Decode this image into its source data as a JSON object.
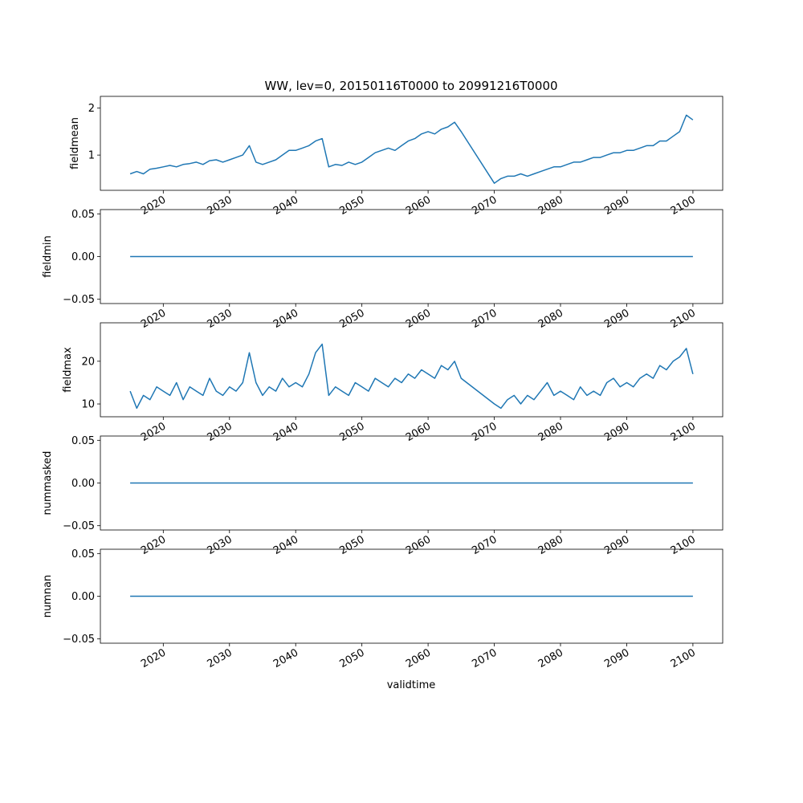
{
  "figure": {
    "title": "WW, lev=0, 20150116T0000 to 20991216T0000",
    "xlabel": "validtime"
  },
  "chart_data": [
    {
      "type": "line",
      "ylabel": "fieldmean",
      "title": "WW, lev=0, 20150116T0000 to 20991216T0000",
      "xlim": [
        2010.5,
        2104.5
      ],
      "ylim": [
        0.25,
        2.25
      ],
      "yticks": [
        1,
        2
      ],
      "ytick_labels": [
        "1",
        "2"
      ],
      "xticks": [
        2020,
        2030,
        2040,
        2050,
        2060,
        2070,
        2080,
        2090,
        2100
      ],
      "xtick_labels": [
        "2020",
        "2030",
        "2040",
        "2050",
        "2060",
        "2070",
        "2080",
        "2090",
        "2100"
      ],
      "series": [
        {
          "name": "fieldmean",
          "color": "#1f77b4",
          "x": [
            2015.0,
            2016.0,
            2017.0,
            2018.0,
            2019.0,
            2020.0,
            2021.0,
            2022.0,
            2023.0,
            2024.0,
            2025.0,
            2026.0,
            2027.0,
            2028.0,
            2029.0,
            2030.0,
            2031.0,
            2032.0,
            2033.0,
            2034.0,
            2035.0,
            2036.0,
            2037.0,
            2038.0,
            2039.0,
            2040.0,
            2041.0,
            2042.0,
            2043.0,
            2044.0,
            2045.0,
            2046.0,
            2047.0,
            2048.0,
            2049.0,
            2050.0,
            2051.0,
            2052.0,
            2053.0,
            2054.0,
            2055.0,
            2056.0,
            2057.0,
            2058.0,
            2059.0,
            2060.0,
            2061.0,
            2062.0,
            2063.0,
            2064.0,
            2065.0,
            2070.0,
            2071.0,
            2072.0,
            2073.0,
            2074.0,
            2075.0,
            2076.0,
            2077.0,
            2078.0,
            2079.0,
            2080.0,
            2081.0,
            2082.0,
            2083.0,
            2084.0,
            2085.0,
            2086.0,
            2087.0,
            2088.0,
            2089.0,
            2090.0,
            2091.0,
            2092.0,
            2093.0,
            2094.0,
            2095.0,
            2096.0,
            2097.0,
            2098.0,
            2099.0,
            2100.0
          ],
          "values": [
            0.6,
            0.65,
            0.6,
            0.7,
            0.72,
            0.75,
            0.78,
            0.75,
            0.8,
            0.82,
            0.85,
            0.8,
            0.88,
            0.9,
            0.85,
            0.9,
            0.95,
            1.0,
            1.2,
            0.85,
            0.8,
            0.85,
            0.9,
            1.0,
            1.1,
            1.1,
            1.15,
            1.2,
            1.3,
            1.35,
            0.75,
            0.8,
            0.78,
            0.85,
            0.8,
            0.85,
            0.95,
            1.05,
            1.1,
            1.15,
            1.1,
            1.2,
            1.3,
            1.35,
            1.45,
            1.5,
            1.45,
            1.55,
            1.6,
            1.7,
            1.5,
            0.4,
            0.5,
            0.55,
            0.55,
            0.6,
            0.55,
            0.6,
            0.65,
            0.7,
            0.75,
            0.75,
            0.8,
            0.85,
            0.85,
            0.9,
            0.95,
            0.95,
            1.0,
            1.05,
            1.05,
            1.1,
            1.1,
            1.15,
            1.2,
            1.2,
            1.3,
            1.3,
            1.4,
            1.5,
            1.85,
            1.75
          ]
        }
      ]
    },
    {
      "type": "line",
      "ylabel": "fieldmin",
      "xlim": [
        2010.5,
        2104.5
      ],
      "ylim": [
        -0.055,
        0.055
      ],
      "yticks": [
        -0.05,
        0.0,
        0.05
      ],
      "ytick_labels": [
        "−0.05",
        "0.00",
        "0.05"
      ],
      "xticks": [
        2020,
        2030,
        2040,
        2050,
        2060,
        2070,
        2080,
        2090,
        2100
      ],
      "xtick_labels": [
        "2020",
        "2030",
        "2040",
        "2050",
        "2060",
        "2070",
        "2080",
        "2090",
        "2100"
      ],
      "series": [
        {
          "name": "fieldmin",
          "color": "#1f77b4",
          "x": [
            2015.0,
            2100.0
          ],
          "values": [
            0.0,
            0.0
          ]
        }
      ]
    },
    {
      "type": "line",
      "ylabel": "fieldmax",
      "xlim": [
        2010.5,
        2104.5
      ],
      "ylim": [
        7.0,
        29.0
      ],
      "yticks": [
        10,
        20
      ],
      "ytick_labels": [
        "10",
        "20"
      ],
      "xticks": [
        2020,
        2030,
        2040,
        2050,
        2060,
        2070,
        2080,
        2090,
        2100
      ],
      "xtick_labels": [
        "2020",
        "2030",
        "2040",
        "2050",
        "2060",
        "2070",
        "2080",
        "2090",
        "2100"
      ],
      "series": [
        {
          "name": "fieldmax",
          "color": "#1f77b4",
          "x": [
            2015.0,
            2016.0,
            2017.0,
            2018.0,
            2019.0,
            2020.0,
            2021.0,
            2022.0,
            2023.0,
            2024.0,
            2025.0,
            2026.0,
            2027.0,
            2028.0,
            2029.0,
            2030.0,
            2031.0,
            2032.0,
            2033.0,
            2034.0,
            2035.0,
            2036.0,
            2037.0,
            2038.0,
            2039.0,
            2040.0,
            2041.0,
            2042.0,
            2043.0,
            2044.0,
            2045.0,
            2046.0,
            2047.0,
            2048.0,
            2049.0,
            2050.0,
            2051.0,
            2052.0,
            2053.0,
            2054.0,
            2055.0,
            2056.0,
            2057.0,
            2058.0,
            2059.0,
            2060.0,
            2061.0,
            2062.0,
            2063.0,
            2064.0,
            2065.0,
            2070.0,
            2071.0,
            2072.0,
            2073.0,
            2074.0,
            2075.0,
            2076.0,
            2077.0,
            2078.0,
            2079.0,
            2080.0,
            2081.0,
            2082.0,
            2083.0,
            2084.0,
            2085.0,
            2086.0,
            2087.0,
            2088.0,
            2089.0,
            2090.0,
            2091.0,
            2092.0,
            2093.0,
            2094.0,
            2095.0,
            2096.0,
            2097.0,
            2098.0,
            2099.0,
            2100.0
          ],
          "values": [
            13,
            9,
            12,
            11,
            14,
            13,
            12,
            15,
            11,
            14,
            13,
            12,
            16,
            13,
            12,
            14,
            13,
            15,
            22,
            15,
            12,
            14,
            13,
            16,
            14,
            15,
            14,
            17,
            22,
            24,
            12,
            14,
            13,
            12,
            15,
            14,
            13,
            16,
            15,
            14,
            16,
            15,
            17,
            16,
            18,
            17,
            16,
            19,
            18,
            20,
            16,
            10,
            9,
            11,
            12,
            10,
            12,
            11,
            13,
            15,
            12,
            13,
            12,
            11,
            14,
            12,
            13,
            12,
            15,
            16,
            14,
            15,
            14,
            16,
            17,
            16,
            19,
            18,
            20,
            21,
            23,
            17
          ]
        }
      ]
    },
    {
      "type": "line",
      "ylabel": "nummasked",
      "xlim": [
        2010.5,
        2104.5
      ],
      "ylim": [
        -0.055,
        0.055
      ],
      "yticks": [
        -0.05,
        0.0,
        0.05
      ],
      "ytick_labels": [
        "−0.05",
        "0.00",
        "0.05"
      ],
      "xticks": [
        2020,
        2030,
        2040,
        2050,
        2060,
        2070,
        2080,
        2090,
        2100
      ],
      "xtick_labels": [
        "2020",
        "2030",
        "2040",
        "2050",
        "2060",
        "2070",
        "2080",
        "2090",
        "2100"
      ],
      "series": [
        {
          "name": "nummasked",
          "color": "#1f77b4",
          "x": [
            2015.0,
            2100.0
          ],
          "values": [
            0.0,
            0.0
          ]
        }
      ]
    },
    {
      "type": "line",
      "ylabel": "numnan",
      "xlabel": "validtime",
      "xlim": [
        2010.5,
        2104.5
      ],
      "ylim": [
        -0.055,
        0.055
      ],
      "yticks": [
        -0.05,
        0.0,
        0.05
      ],
      "ytick_labels": [
        "−0.05",
        "0.00",
        "0.05"
      ],
      "xticks": [
        2020,
        2030,
        2040,
        2050,
        2060,
        2070,
        2080,
        2090,
        2100
      ],
      "xtick_labels": [
        "2020",
        "2030",
        "2040",
        "2050",
        "2060",
        "2070",
        "2080",
        "2090",
        "2100"
      ],
      "series": [
        {
          "name": "numnan",
          "color": "#1f77b4",
          "x": [
            2015.0,
            2100.0
          ],
          "values": [
            0.0,
            0.0
          ]
        }
      ]
    }
  ]
}
